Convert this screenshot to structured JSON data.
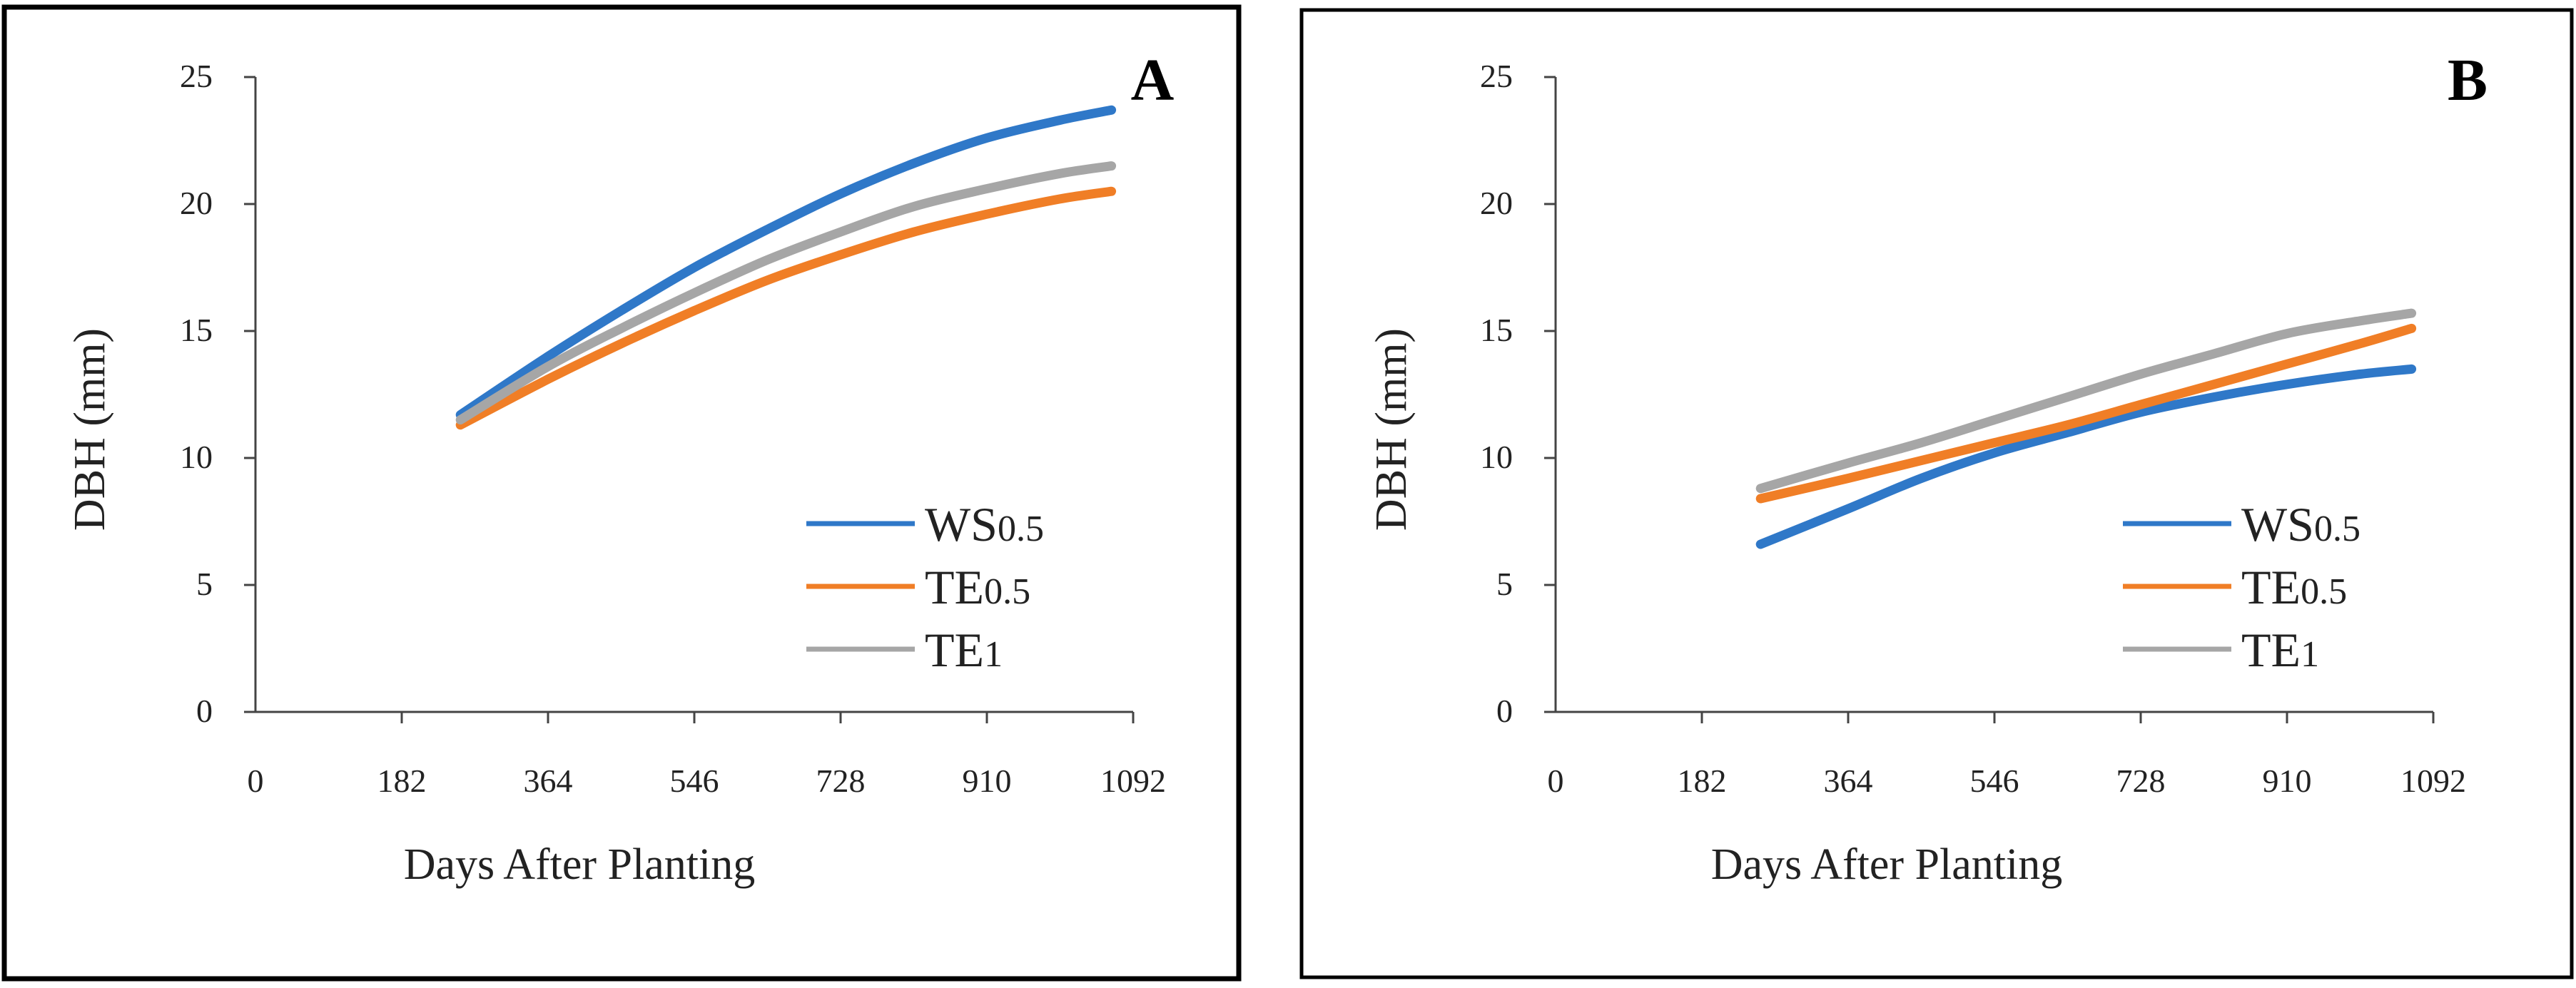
{
  "colors": {
    "ws05": "#2f78c8",
    "te05": "#f07e26",
    "te1": "#a6a6a6",
    "axis": "#444444",
    "frame": "#000000"
  },
  "chart_data": [
    {
      "type": "line",
      "panel_label": "A",
      "title": "",
      "xlabel": "Days After Planting",
      "ylabel": "DBH (mm)",
      "xlim": [
        0,
        1092
      ],
      "ylim": [
        0,
        25
      ],
      "xticks": [
        0,
        182,
        364,
        546,
        728,
        910,
        1092
      ],
      "yticks": [
        0,
        5,
        10,
        15,
        20,
        25
      ],
      "grid": false,
      "legend_position": "bottom-right",
      "x": [
        255,
        364,
        455,
        546,
        637,
        728,
        819,
        910,
        1001,
        1065
      ],
      "series": [
        {
          "name": "WS",
          "name_sub": "0.5",
          "color_key": "ws05",
          "values": [
            11.7,
            14.0,
            15.8,
            17.5,
            19.0,
            20.4,
            21.6,
            22.6,
            23.3,
            23.7
          ]
        },
        {
          "name": "TE",
          "name_sub": "0.5",
          "color_key": "te05",
          "values": [
            11.3,
            13.1,
            14.5,
            15.8,
            17.0,
            18.0,
            18.9,
            19.6,
            20.2,
            20.5
          ]
        },
        {
          "name": "TE",
          "name_sub": "1",
          "color_key": "te1",
          "values": [
            11.5,
            13.6,
            15.1,
            16.5,
            17.8,
            18.9,
            19.9,
            20.6,
            21.2,
            21.5
          ]
        }
      ]
    },
    {
      "type": "line",
      "panel_label": "B",
      "title": "",
      "xlabel": "Days After Planting",
      "ylabel": "DBH (mm)",
      "xlim": [
        0,
        1092
      ],
      "ylim": [
        0,
        25
      ],
      "xticks": [
        0,
        182,
        364,
        546,
        728,
        910,
        1092
      ],
      "yticks": [
        0,
        5,
        10,
        15,
        20,
        25
      ],
      "grid": false,
      "legend_position": "bottom-right",
      "x": [
        255,
        364,
        455,
        546,
        637,
        728,
        819,
        910,
        1001,
        1065
      ],
      "series": [
        {
          "name": "WS",
          "name_sub": "0.5",
          "color_key": "ws05",
          "values": [
            6.6,
            8.0,
            9.2,
            10.2,
            11.0,
            11.8,
            12.4,
            12.9,
            13.3,
            13.5
          ]
        },
        {
          "name": "TE",
          "name_sub": "0.5",
          "color_key": "te05",
          "values": [
            8.4,
            9.2,
            9.9,
            10.6,
            11.3,
            12.1,
            12.9,
            13.7,
            14.5,
            15.1
          ]
        },
        {
          "name": "TE",
          "name_sub": "1",
          "color_key": "te1",
          "values": [
            8.8,
            9.8,
            10.6,
            11.5,
            12.4,
            13.3,
            14.1,
            14.9,
            15.4,
            15.7
          ]
        }
      ]
    }
  ]
}
